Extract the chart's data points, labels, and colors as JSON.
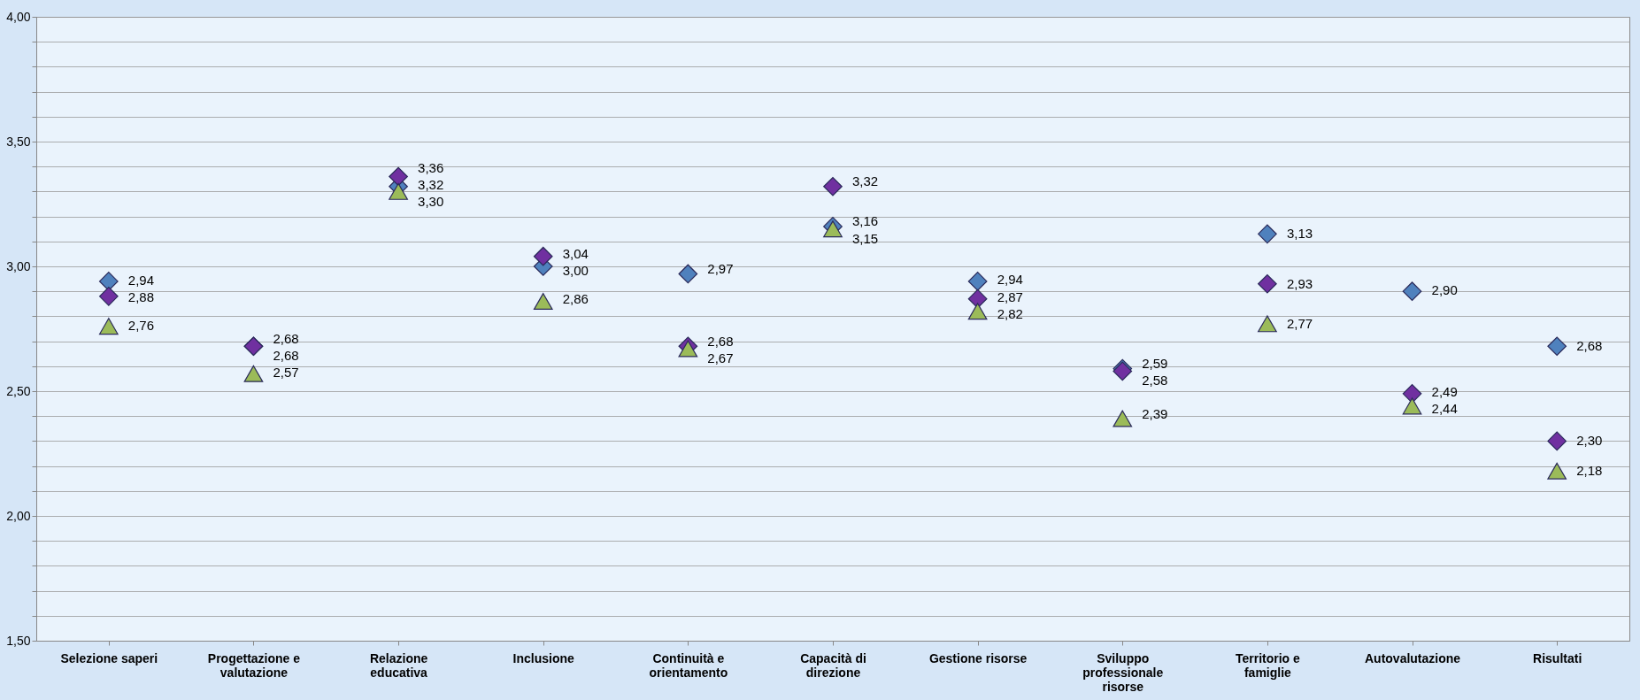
{
  "chart_data": {
    "type": "scatter",
    "categories": [
      "Selezione saperi",
      "Progettazione e valutazione",
      "Relazione educativa",
      "Inclusione",
      "Continuità e orientamento",
      "Capacità di direzione",
      "Gestione risorse",
      "Sviluppo professionale risorse",
      "Territorio e famiglie",
      "Autovalutazione",
      "Risultati"
    ],
    "series": [
      {
        "color": "#4f81bd",
        "marker": "diamond",
        "values": [
          2.94,
          2.68,
          3.32,
          3.0,
          2.97,
          3.16,
          2.94,
          2.59,
          3.13,
          2.9,
          2.68
        ],
        "value_labels": [
          "2,94",
          "2,68",
          "3,32",
          "3,00",
          "2,97",
          "3,16",
          "2,94",
          "2,59",
          "3,13",
          "2,90",
          "2,68"
        ]
      },
      {
        "color": "#7030a0",
        "marker": "diamond",
        "values": [
          2.88,
          2.68,
          3.36,
          3.04,
          2.68,
          3.32,
          2.87,
          2.58,
          2.93,
          2.49,
          2.3
        ],
        "value_labels": [
          "2,88",
          "2,68",
          "3,36",
          "3,04",
          "2,68",
          "3,32",
          "2,87",
          "2,58",
          "2,93",
          "2,49",
          "2,30"
        ]
      },
      {
        "color": "#9bbb59",
        "marker": "triangle",
        "values": [
          2.76,
          2.57,
          3.3,
          2.86,
          2.67,
          3.15,
          2.82,
          2.39,
          2.77,
          2.44,
          2.18
        ],
        "value_labels": [
          "2,76",
          "2,57",
          "3,30",
          "2,86",
          "2,67",
          "3,15",
          "2,82",
          "2,39",
          "2,77",
          "2,44",
          "2,18"
        ]
      }
    ],
    "ylim": [
      1.5,
      4.0
    ],
    "yticks": [
      {
        "value": 1.5,
        "label": "1,50"
      },
      {
        "value": 1.6,
        "label": null
      },
      {
        "value": 1.7,
        "label": null
      },
      {
        "value": 1.8,
        "label": null
      },
      {
        "value": 1.9,
        "label": null
      },
      {
        "value": 2.0,
        "label": "2,00"
      },
      {
        "value": 2.1,
        "label": null
      },
      {
        "value": 2.2,
        "label": null
      },
      {
        "value": 2.3,
        "label": null
      },
      {
        "value": 2.4,
        "label": null
      },
      {
        "value": 2.5,
        "label": "2,50"
      },
      {
        "value": 2.6,
        "label": null
      },
      {
        "value": 2.7,
        "label": null
      },
      {
        "value": 2.8,
        "label": null
      },
      {
        "value": 2.9,
        "label": null
      },
      {
        "value": 3.0,
        "label": "3,00"
      },
      {
        "value": 3.1,
        "label": null
      },
      {
        "value": 3.2,
        "label": null
      },
      {
        "value": 3.3,
        "label": null
      },
      {
        "value": 3.4,
        "label": null
      },
      {
        "value": 3.5,
        "label": "3,50"
      },
      {
        "value": 3.6,
        "label": null
      },
      {
        "value": 3.7,
        "label": null
      },
      {
        "value": 3.8,
        "label": null
      },
      {
        "value": 3.9,
        "label": null
      },
      {
        "value": 4.0,
        "label": "4,00"
      }
    ],
    "grid": "y",
    "legend": false
  }
}
